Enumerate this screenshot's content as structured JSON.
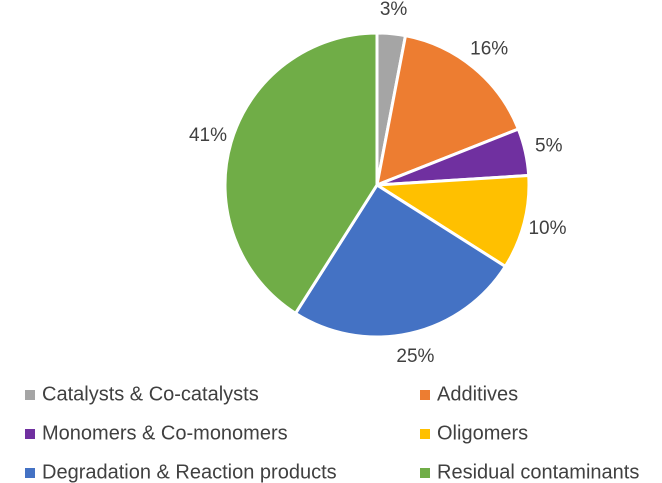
{
  "chart_data": {
    "type": "pie",
    "categories": [
      "Catalysts & Co-catalysts",
      "Additives",
      "Monomers & Co-monomers",
      "Oligomers",
      "Degradation & Reaction products",
      "Residual contaminants"
    ],
    "values": [
      3,
      16,
      5,
      10,
      25,
      41
    ],
    "value_labels": [
      "3%",
      "16%",
      "5%",
      "10%",
      "25%",
      "41%"
    ],
    "colors": [
      "#a5a5a5",
      "#ed7d31",
      "#7030a0",
      "#ffc000",
      "#4472c4",
      "#70ad47"
    ],
    "legend": "bottom"
  }
}
